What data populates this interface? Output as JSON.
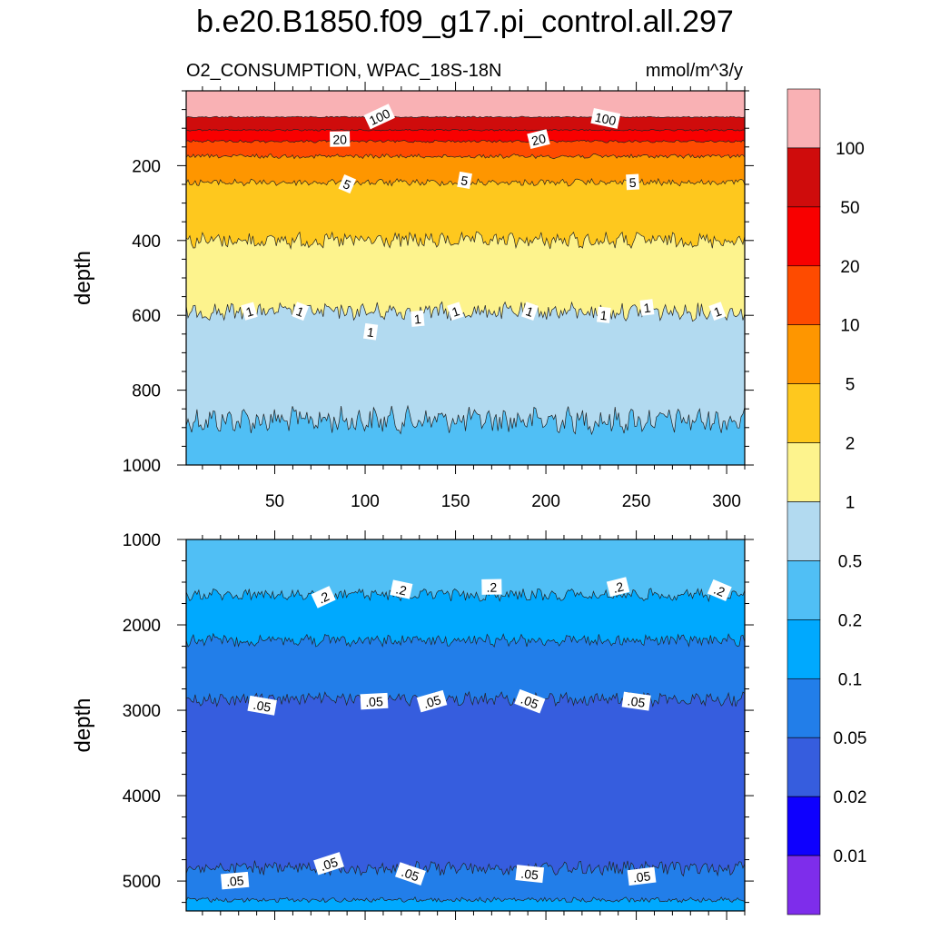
{
  "title": "b.e20.B1850.f09_g17.pi_control.all.297",
  "subtitle_left": "O2_CONSUMPTION, WPAC_18S-18N",
  "subtitle_right": "mmol/m^3/y",
  "chart_data": [
    {
      "type": "contour",
      "name": "upper-panel",
      "xlabel": "",
      "ylabel": "depth",
      "xlim": [
        1,
        310
      ],
      "ylim": [
        1000,
        0
      ],
      "xticks": [
        50,
        100,
        150,
        200,
        250,
        300
      ],
      "yticks": [
        200,
        400,
        600,
        800,
        1000
      ],
      "boundaries": [
        {
          "level": "100",
          "depth": 70,
          "amp": 1.5
        },
        {
          "level": "50",
          "depth": 105,
          "amp": 2
        },
        {
          "level": "20",
          "depth": 135,
          "amp": 3
        },
        {
          "level": "10",
          "depth": 175,
          "amp": 5
        },
        {
          "level": "5",
          "depth": 245,
          "amp": 8
        },
        {
          "level": "2",
          "depth": 400,
          "amp": 18
        },
        {
          "level": "1",
          "depth": 590,
          "amp": 20
        },
        {
          "level": "0.5",
          "depth": 880,
          "amp": 30
        }
      ],
      "surface_class": ">100",
      "bottom_class": "0.2-0.5",
      "contour_labels": [
        {
          "text": "100",
          "x": 108,
          "d": 70
        },
        {
          "text": "100",
          "x": 233,
          "d": 75
        },
        {
          "text": "20",
          "x": 86,
          "d": 130
        },
        {
          "text": "20",
          "x": 196,
          "d": 130
        },
        {
          "text": "5",
          "x": 90,
          "d": 250
        },
        {
          "text": "5",
          "x": 155,
          "d": 240
        },
        {
          "text": "5",
          "x": 248,
          "d": 245
        },
        {
          "text": "1",
          "x": 36,
          "d": 590
        },
        {
          "text": "1",
          "x": 64,
          "d": 590
        },
        {
          "text": "1",
          "x": 103,
          "d": 645
        },
        {
          "text": "1",
          "x": 129,
          "d": 610
        },
        {
          "text": "1",
          "x": 150,
          "d": 590
        },
        {
          "text": "1",
          "x": 191,
          "d": 590
        },
        {
          "text": "1",
          "x": 232,
          "d": 600
        },
        {
          "text": "1",
          "x": 256,
          "d": 580
        },
        {
          "text": "1",
          "x": 295,
          "d": 590
        }
      ]
    },
    {
      "type": "contour",
      "name": "lower-panel",
      "xlabel": "",
      "ylabel": "depth",
      "xlim": [
        1,
        310
      ],
      "ylim": [
        5350,
        1000
      ],
      "xticks": [
        50,
        100,
        150,
        200,
        250,
        300
      ],
      "yticks": [
        1000,
        2000,
        3000,
        4000,
        5000
      ],
      "boundaries": [
        {
          "level": "0.2",
          "depth": 1650,
          "amp": 60
        },
        {
          "level": "0.1",
          "depth": 2180,
          "amp": 60
        },
        {
          "level": "0.05",
          "depth": 2870,
          "amp": 70
        },
        {
          "level": "0.05b",
          "depth": 4850,
          "amp": 70
        },
        {
          "level": "0.1b",
          "depth": 5220,
          "amp": 25
        }
      ],
      "surface_class": "0.2-0.5",
      "bottom_class": "0.1-0.2",
      "contour_labels": [
        {
          "text": ".2",
          "x": 77,
          "d": 1680
        },
        {
          "text": ".2",
          "x": 120,
          "d": 1590
        },
        {
          "text": ".2",
          "x": 170,
          "d": 1560
        },
        {
          "text": ".2",
          "x": 240,
          "d": 1560
        },
        {
          "text": ".2",
          "x": 296,
          "d": 1600
        },
        {
          "text": ".05",
          "x": 43,
          "d": 2950
        },
        {
          "text": ".05",
          "x": 105,
          "d": 2900
        },
        {
          "text": ".05",
          "x": 137,
          "d": 2900
        },
        {
          "text": ".05",
          "x": 191,
          "d": 2900
        },
        {
          "text": ".05",
          "x": 250,
          "d": 2900
        },
        {
          "text": ".05",
          "x": 28,
          "d": 5000
        },
        {
          "text": ".05",
          "x": 80,
          "d": 4800
        },
        {
          "text": ".05",
          "x": 125,
          "d": 4920
        },
        {
          "text": ".05",
          "x": 191,
          "d": 4920
        },
        {
          "text": ".05",
          "x": 253,
          "d": 4950
        }
      ]
    }
  ],
  "colorbar": {
    "labels": [
      "100",
      "50",
      "20",
      "10",
      "5",
      "2",
      "1",
      "0.5",
      "0.2",
      "0.1",
      "0.05",
      "0.02",
      "0.01"
    ],
    "colors": [
      "#f9b1b4",
      "#cf0c0c",
      "#f80000",
      "#fe4b00",
      "#fe9600",
      "#fec81e",
      "#fdf38d",
      "#b2daf0",
      "#50bff5",
      "#00a9fe",
      "#227ee9",
      "#365dde",
      "#0e00fe",
      "#7e2deb"
    ]
  },
  "level_colors": {
    ">100": "#f9b1b4",
    "100": "#cf0c0c",
    "50": "#f80000",
    "20": "#fe4b00",
    "10": "#fe9600",
    "5": "#fec81e",
    "2": "#fdf38d",
    "1": "#b2daf0",
    "0.5": "#50bff5",
    "0.2": "#00a9fe",
    "0.1": "#227ee9",
    "0.05": "#365dde",
    "0.05b": "#227ee9",
    "0.1b": "#00a9fe",
    "0.2-0.5": "#50bff5",
    "0.1-0.2": "#00a9fe"
  }
}
